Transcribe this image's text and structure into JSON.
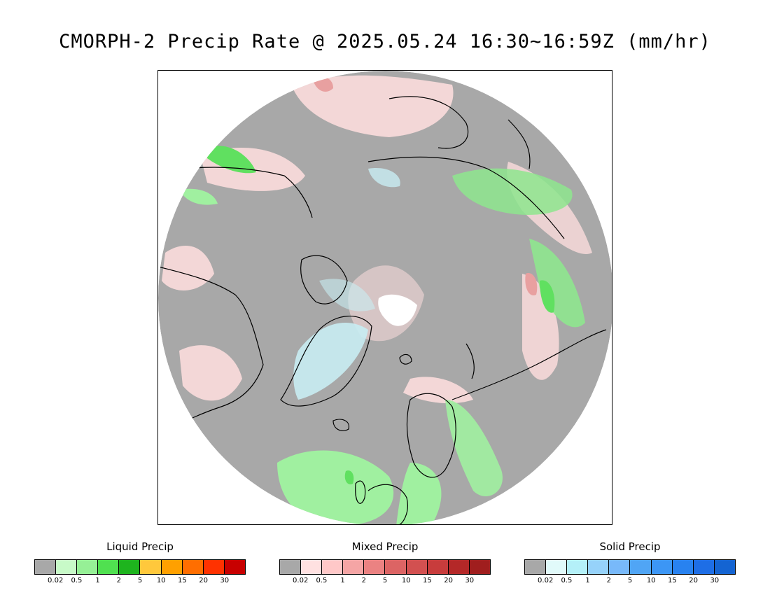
{
  "title": "CMORPH-2 Precip Rate @ 2025.05.24 16:30~16:59Z (mm/hr)",
  "map": {
    "projection": "polar stereographic (North Pole)",
    "background_color": "#a8a8a8",
    "coastline_color": "#000000",
    "precip_regions": [
      {
        "name": "pole-no-data",
        "kind": "none",
        "color": "#ffffff"
      },
      {
        "name": "greenland-ice-sheet",
        "kind": "solid",
        "color": "#c8ecf2"
      },
      {
        "name": "north-atlantic-rain",
        "kind": "liquid",
        "color": "#a0f0a0"
      },
      {
        "name": "siberia-rain-band",
        "kind": "liquid",
        "color": "#8ee68e"
      },
      {
        "name": "alaska-rain",
        "kind": "liquid",
        "color": "#60e060"
      },
      {
        "name": "scandinavia-rain",
        "kind": "liquid",
        "color": "#a0f0a0"
      },
      {
        "name": "eastern-siberia-heavy",
        "kind": "mixed",
        "color": "#e8a0a0"
      },
      {
        "name": "canada-mixed",
        "kind": "mixed",
        "color": "#fbdcdc"
      }
    ]
  },
  "legends": [
    {
      "title": "Liquid Precip",
      "colors": [
        "#a8a8a8",
        "#c8fac8",
        "#96f096",
        "#50e050",
        "#1eb41e",
        "#ffc83c",
        "#ffa000",
        "#ff6e00",
        "#ff3200",
        "#c80000"
      ],
      "ticks": [
        "0.02",
        "0.5",
        "1",
        "2",
        "5",
        "10",
        "15",
        "20",
        "30"
      ]
    },
    {
      "title": "Mixed Precip",
      "colors": [
        "#a8a8a8",
        "#ffe1e1",
        "#ffc8c8",
        "#f5a5a5",
        "#eb8282",
        "#dc6464",
        "#d25050",
        "#c83c3c",
        "#b42828",
        "#a01e1e"
      ],
      "ticks": [
        "0.02",
        "0.5",
        "1",
        "2",
        "5",
        "10",
        "15",
        "20",
        "30"
      ]
    },
    {
      "title": "Solid Precip",
      "colors": [
        "#a8a8a8",
        "#e1fafa",
        "#b4f0f8",
        "#96d2fa",
        "#78b9fa",
        "#50a5f5",
        "#3c96f5",
        "#2882f0",
        "#1e6ee6",
        "#1464d2"
      ],
      "ticks": [
        "0.02",
        "0.5",
        "1",
        "2",
        "5",
        "10",
        "15",
        "20",
        "30"
      ]
    }
  ]
}
